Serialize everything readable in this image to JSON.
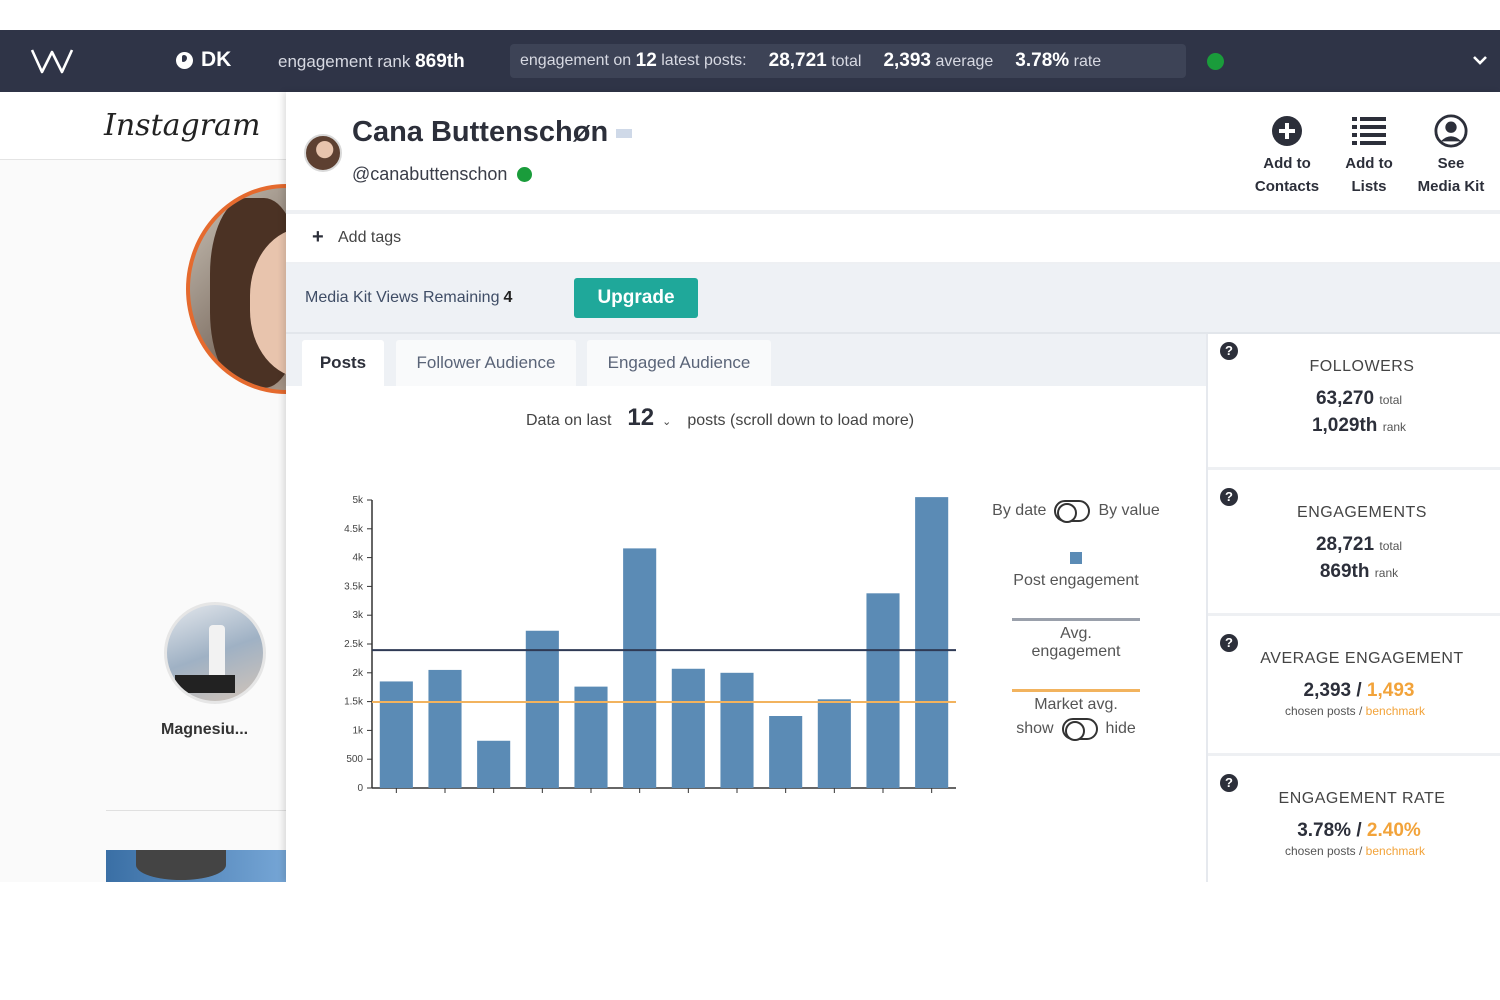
{
  "topbar": {
    "country": "DK",
    "rank_label": "engagement rank",
    "rank_value": "869th",
    "eng_prefix": "engagement on",
    "eng_posts": "12",
    "eng_suffix": "latest posts:",
    "total_value": "28,721",
    "total_label": "total",
    "avg_value": "2,393",
    "avg_label": "average",
    "rate_value": "3.78%",
    "rate_label": "rate",
    "icons": [
      "logo-icon",
      "globe-icon",
      "status-dot-icon",
      "chevron-down-icon"
    ]
  },
  "instagram": {
    "logo_text": "Instagram",
    "story_label": "Magnesiu..."
  },
  "profile": {
    "name": "Cana Buttenschøn",
    "handle": "@canabuttenschon",
    "actions": [
      {
        "line1": "Add to",
        "line2": "Contacts",
        "icon": "plus-circle-icon"
      },
      {
        "line1": "Add to",
        "line2": "Lists",
        "icon": "list-icon"
      },
      {
        "line1": "See",
        "line2": "Media Kit",
        "icon": "user-circle-icon"
      }
    ]
  },
  "tags": {
    "label": "Add tags"
  },
  "mediakit": {
    "text": "Media Kit Views Remaining",
    "remaining": "4",
    "upgrade_label": "Upgrade"
  },
  "tabs": [
    {
      "label": "Posts",
      "active": true
    },
    {
      "label": "Follower Audience",
      "active": false
    },
    {
      "label": "Engaged Audience",
      "active": false
    }
  ],
  "data_on": {
    "prefix": "Data on last",
    "count": "12",
    "suffix": "posts (scroll down to load more)"
  },
  "legend": {
    "by_date": "By date",
    "by_value": "By value",
    "post_engagement": "Post engagement",
    "avg_line1": "Avg.",
    "avg_line2": "engagement",
    "market_label": "Market avg.",
    "show": "show",
    "hide": "hide"
  },
  "colors": {
    "bar": "#5b8bb5",
    "avg_line": "#2f3a55",
    "market_line": "#f2b35e",
    "accent": "#1fa89a",
    "benchmark": "#f2a33a"
  },
  "chart_data": {
    "type": "bar",
    "categories": [
      "",
      "",
      "",
      "",
      "",
      "",
      "",
      "",
      "",
      "",
      "",
      ""
    ],
    "values": [
      1850,
      2050,
      820,
      2730,
      1760,
      4160,
      2070,
      2000,
      1250,
      1540,
      3380,
      5050
    ],
    "ylim": [
      0,
      5000
    ],
    "yticks": [
      "0",
      "500",
      "1k",
      "1.5k",
      "2k",
      "2.5k",
      "3k",
      "3.5k",
      "4k",
      "4.5k",
      "5k"
    ],
    "avg_engagement": 2393,
    "market_avg": 1493,
    "grid": false
  },
  "stats": [
    {
      "title": "FOLLOWERS",
      "line1_value": "63,270",
      "line1_label": "total",
      "line2_value": "1,029th",
      "line2_label": "rank"
    },
    {
      "title": "ENGAGEMENTS",
      "line1_value": "28,721",
      "line1_label": "total",
      "line2_value": "869th",
      "line2_label": "rank"
    },
    {
      "title": "AVERAGE ENGAGEMENT",
      "value": "2,393",
      "bench": "1,493",
      "sub_a": "chosen posts /",
      "sub_b": "benchmark"
    },
    {
      "title": "ENGAGEMENT RATE",
      "value": "3.78%",
      "bench": "2.40%",
      "sub_a": "chosen posts /",
      "sub_b": "benchmark"
    }
  ]
}
